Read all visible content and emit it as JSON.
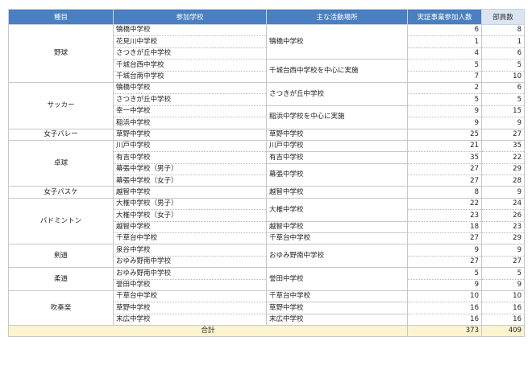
{
  "table": {
    "header": [
      "種目",
      "参加学校",
      "主な活動場所",
      "実証事業参加人数",
      "部員数"
    ],
    "groups": [
      {
        "sport": "野球",
        "places": [
          {
            "name": "犢橋中学校",
            "rows": [
              {
                "school": "犢橋中学校",
                "participants": 6,
                "members": 8
              },
              {
                "school": "花見川中学校",
                "participants": 1,
                "members": 1
              },
              {
                "school": "さつきが丘中学校",
                "participants": 4,
                "members": 6
              }
            ]
          },
          {
            "name": "千城台西中学校を中心に実施",
            "rows": [
              {
                "school": "千城台西中学校",
                "participants": 5,
                "members": 5
              },
              {
                "school": "千城台南中学校",
                "participants": 7,
                "members": 10
              }
            ]
          }
        ]
      },
      {
        "sport": "サッカー",
        "places": [
          {
            "name": "さつきが丘中学校",
            "rows": [
              {
                "school": "犢橋中学校",
                "participants": 2,
                "members": 6
              },
              {
                "school": "さつきが丘中学校",
                "participants": 5,
                "members": 5
              }
            ]
          },
          {
            "name": "稲浜中学校を中心に実施",
            "rows": [
              {
                "school": "幸一中学校",
                "participants": 9,
                "members": 15
              },
              {
                "school": "稲浜中学校",
                "participants": 9,
                "members": 9
              }
            ]
          }
        ]
      },
      {
        "sport": "女子バレー",
        "places": [
          {
            "name": "草野中学校",
            "rows": [
              {
                "school": "草野中学校",
                "participants": 25,
                "members": 27
              }
            ]
          }
        ]
      },
      {
        "sport": "卓球",
        "places": [
          {
            "name": "川戸中学校",
            "rows": [
              {
                "school": "川戸中学校",
                "participants": 21,
                "members": 35
              }
            ]
          },
          {
            "name": "有吉中学校",
            "rows": [
              {
                "school": "有吉中学校",
                "participants": 35,
                "members": 22
              }
            ]
          },
          {
            "name": "幕張中学校",
            "rows": [
              {
                "school": "幕張中学校（男子）",
                "participants": 27,
                "members": 29
              },
              {
                "school": "幕張中学校（女子）",
                "participants": 27,
                "members": 28
              }
            ]
          }
        ]
      },
      {
        "sport": "女子バスケ",
        "places": [
          {
            "name": "越智中学校",
            "rows": [
              {
                "school": "越智中学校",
                "participants": 8,
                "members": 9
              }
            ]
          }
        ]
      },
      {
        "sport": "バドミントン",
        "places": [
          {
            "name": "大椎中学校",
            "rows": [
              {
                "school": "大椎中学校（男子）",
                "participants": 22,
                "members": 24
              },
              {
                "school": "大椎中学校（女子）",
                "participants": 23,
                "members": 26
              }
            ]
          },
          {
            "name": "越智中学校",
            "rows": [
              {
                "school": "越智中学校",
                "participants": 18,
                "members": 23
              }
            ]
          },
          {
            "name": "千草台中学校",
            "rows": [
              {
                "school": "千草台中学校",
                "participants": 27,
                "members": 29
              }
            ]
          }
        ]
      },
      {
        "sport": "剣道",
        "places": [
          {
            "name": "おゆみ野南中学校",
            "rows": [
              {
                "school": "泉谷中学校",
                "participants": 9,
                "members": 9
              },
              {
                "school": "おゆみ野南中学校",
                "participants": 27,
                "members": 27
              }
            ]
          }
        ]
      },
      {
        "sport": "柔道",
        "places": [
          {
            "name": "誉田中学校",
            "rows": [
              {
                "school": "おゆみ野南中学校",
                "participants": 5,
                "members": 5
              },
              {
                "school": "誉田中学校",
                "participants": 9,
                "members": 9
              }
            ]
          }
        ]
      },
      {
        "sport": "吹奏楽",
        "places": [
          {
            "name": "千草台中学校",
            "rows": [
              {
                "school": "千草台中学校",
                "participants": 10,
                "members": 10
              }
            ]
          },
          {
            "name": "草野中学校",
            "rows": [
              {
                "school": "草野中学校",
                "participants": 16,
                "members": 16
              }
            ]
          },
          {
            "name": "末広中学校",
            "rows": [
              {
                "school": "末広中学校",
                "participants": 16,
                "members": 16
              }
            ]
          }
        ]
      }
    ],
    "total": {
      "label": "合計",
      "participants": 373,
      "members": 409
    }
  }
}
